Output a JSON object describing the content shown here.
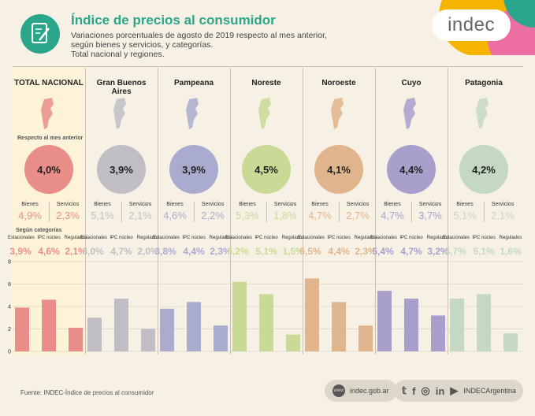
{
  "header": {
    "title": "Índice de precios al consumidor",
    "subtitle_lines": [
      "Variaciones porcentuales de agosto de 2019 respecto al mes anterior,",
      "según bienes y servicios, y categorías.",
      "Total nacional y regiones."
    ],
    "logo_text": "indec"
  },
  "labels": {
    "respecto": "Respecto al mes anterior",
    "segun_categorias": "Según categorías",
    "bienes": "Bienes",
    "servicios": "Servicios",
    "estacionales": "Estacionales",
    "ipc_nucleo": "IPC núcleo",
    "regulados": "Regulados"
  },
  "footer": {
    "source": "Fuente: INDEC-Índice de precios al consumidor",
    "website": "indec.gob.ar",
    "social_handle": "INDECArgentina"
  },
  "colors": {
    "title": "#2aa68a",
    "total": "#e8918a",
    "gba": "#c0bec4",
    "pampeana": "#a9acce",
    "noreste": "#c9d996",
    "noroeste": "#e0b48c",
    "cuyo": "#a99fcd",
    "patagonia": "#c4d8c2",
    "circle_total": "#e98d88"
  },
  "regions": [
    {
      "name": "TOTAL NACIONAL",
      "total": "4,0%",
      "bienes": "4,9%",
      "servicios": "2,3%",
      "estacionales": "3,9%",
      "nucleo": "4,6%",
      "regulados": "2,1%"
    },
    {
      "name": "Gran Buenos Aires",
      "total": "3,9%",
      "bienes": "5,1%",
      "servicios": "2,1%",
      "estacionales": "3,0%",
      "nucleo": "4,7%",
      "regulados": "2,0%"
    },
    {
      "name": "Pampeana",
      "total": "3,9%",
      "bienes": "4,6%",
      "servicios": "2,2%",
      "estacionales": "3,8%",
      "nucleo": "4,4%",
      "regulados": "2,3%"
    },
    {
      "name": "Noreste",
      "total": "4,5%",
      "bienes": "5,3%",
      "servicios": "1,8%",
      "estacionales": "6,2%",
      "nucleo": "5,1%",
      "regulados": "1,5%"
    },
    {
      "name": "Noroeste",
      "total": "4,1%",
      "bienes": "4,7%",
      "servicios": "2,7%",
      "estacionales": "6,5%",
      "nucleo": "4,4%",
      "regulados": "2,3%"
    },
    {
      "name": "Cuyo",
      "total": "4,4%",
      "bienes": "4,7%",
      "servicios": "3,7%",
      "estacionales": "5,4%",
      "nucleo": "4,7%",
      "regulados": "3,2%"
    },
    {
      "name": "Patagonia",
      "total": "4,2%",
      "bienes": "5,1%",
      "servicios": "2,1%",
      "estacionales": "4,7%",
      "nucleo": "5,1%",
      "regulados": "1,6%"
    }
  ],
  "chart_data": {
    "type": "bar",
    "categories": [
      "TOTAL NACIONAL",
      "Gran Buenos Aires",
      "Pampeana",
      "Noreste",
      "Noroeste",
      "Cuyo",
      "Patagonia"
    ],
    "series": [
      {
        "name": "Estacionales",
        "values": [
          3.9,
          3.0,
          3.8,
          6.2,
          6.5,
          5.4,
          4.7
        ]
      },
      {
        "name": "IPC núcleo",
        "values": [
          4.6,
          4.7,
          4.4,
          5.1,
          4.4,
          4.7,
          5.1
        ]
      },
      {
        "name": "Regulados",
        "values": [
          2.1,
          2.0,
          2.3,
          1.5,
          2.3,
          3.2,
          1.6
        ]
      }
    ],
    "ylim": [
      0,
      8
    ],
    "yticks": [
      0,
      2,
      4,
      6,
      8
    ],
    "grid": true
  }
}
